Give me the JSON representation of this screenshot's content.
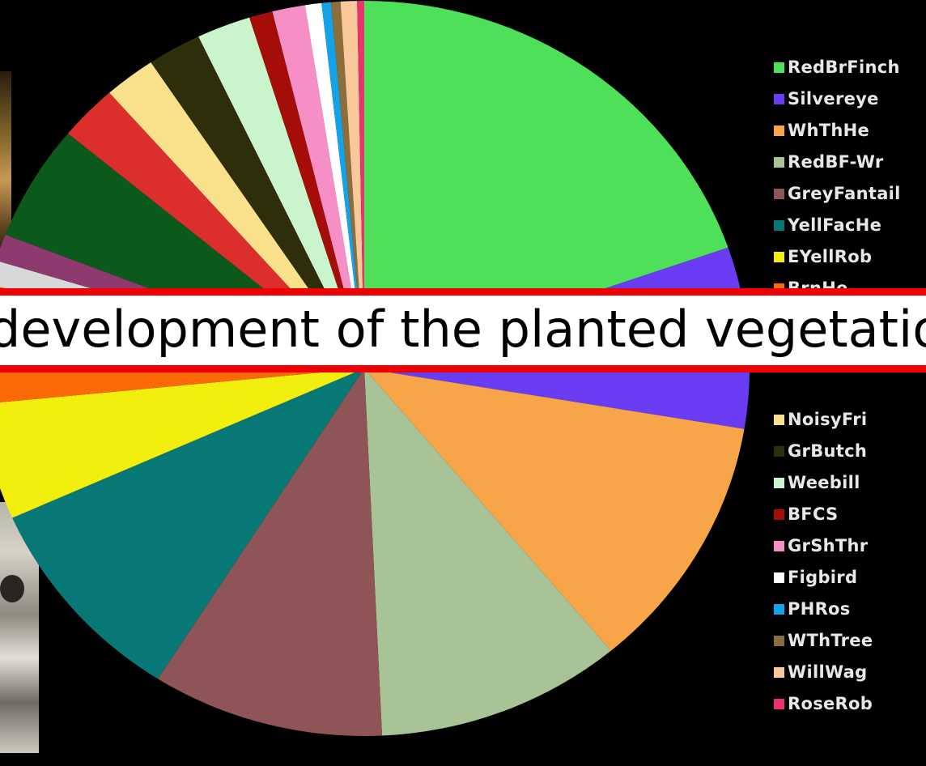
{
  "banner": {
    "text": "development of the planted vegetation"
  },
  "chart_data": {
    "type": "pie",
    "title": "",
    "legend_position": "right",
    "series": [
      {
        "label": "RedBrFinch",
        "value": 20.0,
        "color": "#4fe05a"
      },
      {
        "label": "Silvereye",
        "value": 8.1,
        "color": "#6a3df5"
      },
      {
        "label": "WhThHe",
        "value": 11.5,
        "color": "#f8a448"
      },
      {
        "label": "RedBF-Wr",
        "value": 10.5,
        "color": "#a8c496"
      },
      {
        "label": "GreyFantail",
        "value": 9.9,
        "color": "#8e5456"
      },
      {
        "label": "YellFacHe",
        "value": 9.5,
        "color": "#087877"
      },
      {
        "label": "EYellRob",
        "value": 5.2,
        "color": "#f2ef0f"
      },
      {
        "label": "BrnHe",
        "value": 5.3,
        "color": "#fb6a07"
      },
      {
        "label": "",
        "value": 1.1,
        "color": "#d8d8d8"
      },
      {
        "label": "",
        "value": 1.2,
        "color": "#8e3a6e"
      },
      {
        "label": "",
        "value": 5.2,
        "color": "#0c5a1b"
      },
      {
        "label": "",
        "value": 2.5,
        "color": "#dd2e2e"
      },
      {
        "label": "NoisyFri",
        "value": 2.2,
        "color": "#f9e08b"
      },
      {
        "label": "GrButch",
        "value": 2.3,
        "color": "#2e2e0b"
      },
      {
        "label": "Weebill",
        "value": 2.3,
        "color": "#caf5cc"
      },
      {
        "label": "BFCS",
        "value": 1.0,
        "color": "#a50e08"
      },
      {
        "label": "GrShThr",
        "value": 1.4,
        "color": "#f68fc6"
      },
      {
        "label": "Figbird",
        "value": 0.7,
        "color": "#ffffff"
      },
      {
        "label": "PHRos",
        "value": 0.4,
        "color": "#14a3e8"
      },
      {
        "label": "WThTree",
        "value": 0.4,
        "color": "#8c6e3c"
      },
      {
        "label": "WillWag",
        "value": 0.7,
        "color": "#f9c99a"
      },
      {
        "label": "RoseRob",
        "value": 0.3,
        "color": "#e8336f"
      }
    ],
    "legend_visible_partial": "BrnHe"
  }
}
